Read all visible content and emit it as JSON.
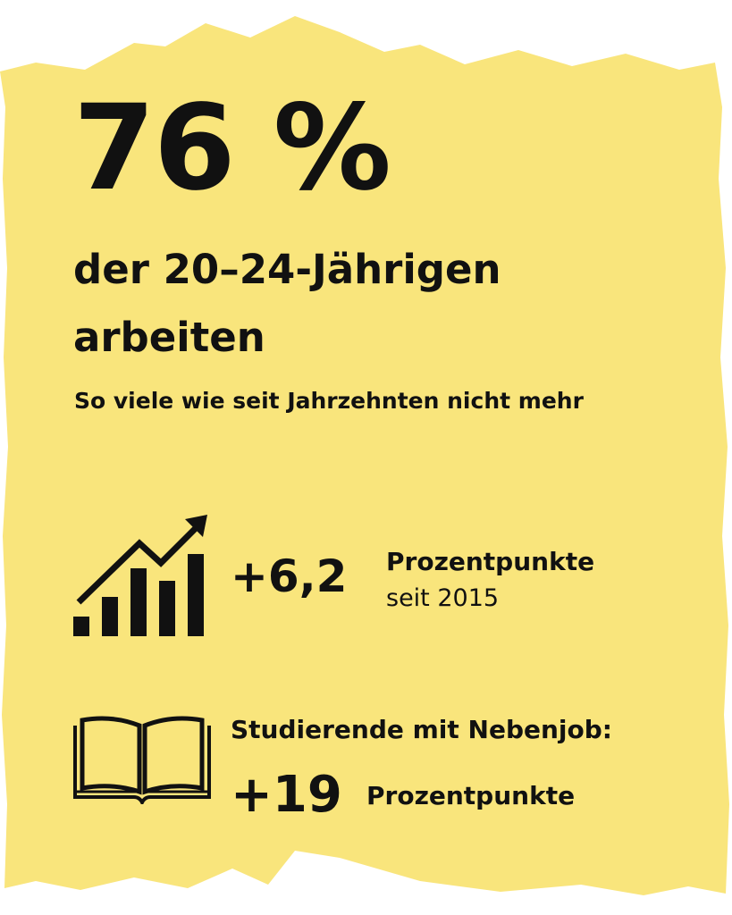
{
  "colors": {
    "paper": "#f9e57c",
    "text": "#111111",
    "background": "#ffffff"
  },
  "headline": {
    "stat": "76 %",
    "line1": "der 20–24-Jährigen",
    "line2": "arbeiten",
    "subheadline": "So viele wie seit Jahrzehnten nicht mehr"
  },
  "stat_rows": [
    {
      "icon": "bar-chart-growth-icon",
      "value": "+6,2",
      "unit": "Prozentpunkte",
      "note": "seit 2015"
    },
    {
      "icon": "open-book-icon",
      "label": "Studierende mit Nebenjob:",
      "value": "+19",
      "unit": "Prozentpunkte"
    }
  ]
}
